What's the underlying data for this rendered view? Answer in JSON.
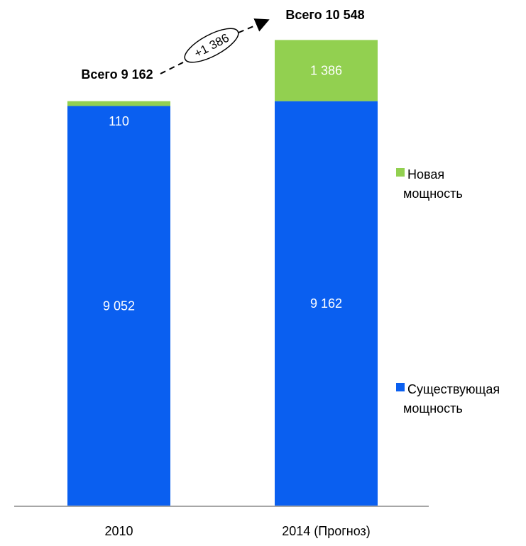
{
  "chart_data": {
    "type": "bar",
    "stacked": true,
    "categories": [
      "2010",
      "2014 (Прогноз)"
    ],
    "series": [
      {
        "name": "Существующая мощность",
        "values": [
          9052,
          9162
        ],
        "labels": [
          "9 052",
          "9 162"
        ],
        "color": "#0a5ff0"
      },
      {
        "name": "Новая мощность",
        "values": [
          110,
          1386
        ],
        "labels": [
          "110",
          "1 386"
        ],
        "color": "#92d050"
      }
    ],
    "totals": [
      {
        "label": "Всего 9 162",
        "value": 9162
      },
      {
        "label": "Всего 10 548",
        "value": 10548
      }
    ],
    "annotation": {
      "text": "+1 386",
      "value": 1386
    },
    "legend": {
      "position": "right",
      "items": [
        {
          "lines": [
            "Новая",
            "мощность"
          ],
          "color": "#92d050"
        },
        {
          "lines": [
            "Существующая",
            "мощность"
          ],
          "color": "#0a5ff0"
        }
      ]
    },
    "ylim": [
      0,
      11000
    ],
    "grid": false
  }
}
